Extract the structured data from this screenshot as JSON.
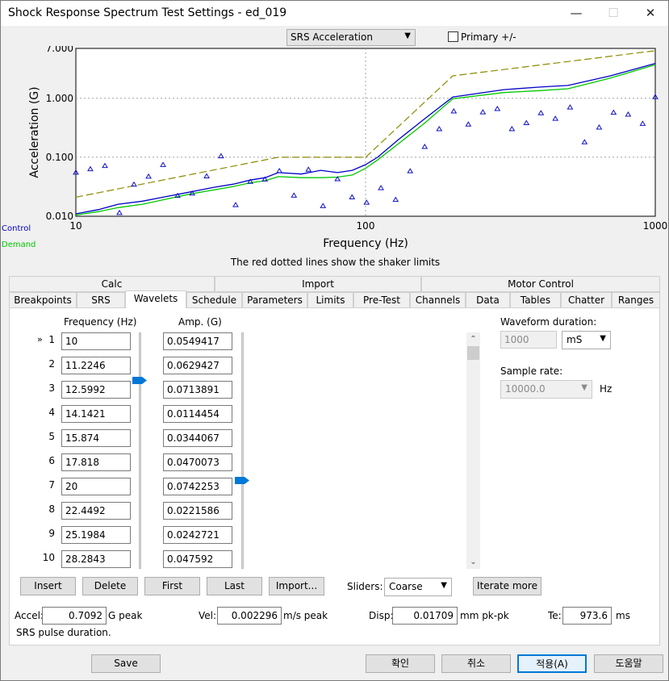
{
  "window": {
    "title": "Shock Response Spectrum Test Settings - ed_019"
  },
  "chart_select": {
    "value": "SRS Acceleration"
  },
  "primary_checkbox": {
    "label": "Primary +/-",
    "checked": false
  },
  "legend": {
    "control": "Control",
    "demand": "Demand"
  },
  "shaker_note": "The red dotted lines show the shaker limits",
  "chart_data": {
    "type": "line",
    "title": "",
    "xlabel": "Frequency (Hz)",
    "ylabel": "Acceleration (G)",
    "xscale": "log",
    "yscale": "log",
    "xlim": [
      10,
      1000
    ],
    "ylim": [
      0.01,
      7
    ],
    "xticks": [
      "10",
      "100",
      "1000"
    ],
    "yticks": [
      "0.010",
      "0.100",
      "1.000",
      "7.000"
    ],
    "grid": true,
    "colors": {
      "limit": "#8b8b00",
      "control": "#0000c8",
      "demand": "#00c800",
      "marker": "#1010c8"
    },
    "series": [
      {
        "role": "limit",
        "x": [
          10,
          50,
          100,
          200,
          1000
        ],
        "y": [
          0.021,
          0.1,
          0.1,
          2.4,
          6.4
        ]
      },
      {
        "role": "control",
        "x": [
          10,
          12,
          14,
          17,
          20,
          25,
          30,
          35,
          40,
          45,
          50,
          60,
          70,
          80,
          90,
          100,
          110,
          130,
          160,
          200,
          300,
          400,
          500,
          700,
          1000
        ],
        "y": [
          0.011,
          0.013,
          0.016,
          0.018,
          0.021,
          0.026,
          0.031,
          0.035,
          0.041,
          0.045,
          0.055,
          0.052,
          0.06,
          0.055,
          0.06,
          0.075,
          0.1,
          0.2,
          0.45,
          1.05,
          1.4,
          1.55,
          1.65,
          2.4,
          3.9
        ]
      },
      {
        "role": "demand",
        "x": [
          10,
          12,
          14,
          17,
          20,
          25,
          30,
          35,
          40,
          45,
          50,
          60,
          70,
          80,
          90,
          100,
          110,
          130,
          160,
          200,
          300,
          400,
          500,
          700,
          1000
        ],
        "y": [
          0.0105,
          0.012,
          0.014,
          0.016,
          0.019,
          0.024,
          0.028,
          0.032,
          0.037,
          0.04,
          0.047,
          0.045,
          0.045,
          0.046,
          0.05,
          0.065,
          0.09,
          0.17,
          0.38,
          0.98,
          1.25,
          1.35,
          1.45,
          2.2,
          3.7
        ]
      },
      {
        "role": "wavelets",
        "x": [
          10,
          11.22,
          12.6,
          14.14,
          15.87,
          17.82,
          20,
          22.45,
          25.2,
          28.28,
          31.7,
          35.6,
          40,
          44.9,
          50.4,
          56.6,
          63.5,
          71.3,
          80,
          89.8,
          100.8,
          113,
          127,
          142.5,
          160,
          179.6,
          201.6,
          226.3,
          254,
          285,
          320,
          359,
          403,
          452,
          508,
          570,
          640,
          718,
          806,
          905,
          1000
        ],
        "y": [
          0.0549,
          0.0629,
          0.0714,
          0.0114,
          0.0344,
          0.047,
          0.0742,
          0.0222,
          0.0243,
          0.0476,
          0.104,
          0.0155,
          0.0385,
          0.042,
          0.0584,
          0.0224,
          0.0617,
          0.0149,
          0.0425,
          0.021,
          0.017,
          0.03,
          0.019,
          0.058,
          0.15,
          0.3,
          0.6,
          0.36,
          0.58,
          0.66,
          0.3,
          0.38,
          0.56,
          0.45,
          0.7,
          0.18,
          0.32,
          0.57,
          0.53,
          0.37,
          1.05
        ]
      }
    ]
  },
  "tabs_row1": [
    "Calc",
    "Import",
    "Motor Control"
  ],
  "tabs_row2": [
    "Breakpoints",
    "SRS",
    "Wavelets",
    "Schedule",
    "Parameters",
    "Limits",
    "Pre-Test",
    "Channels",
    "Data",
    "Tables",
    "Chatter",
    "Ranges"
  ],
  "grid": {
    "freq_header": "Frequency (Hz)",
    "amp_header": "Amp. (G)",
    "current_marker": "»",
    "rows": [
      {
        "n": "1",
        "f": "10",
        "a": "0.0549417"
      },
      {
        "n": "2",
        "f": "11.2246",
        "a": "0.0629427"
      },
      {
        "n": "3",
        "f": "12.5992",
        "a": "0.0713891"
      },
      {
        "n": "4",
        "f": "14.1421",
        "a": "0.0114454"
      },
      {
        "n": "5",
        "f": "15.874",
        "a": "0.0344067"
      },
      {
        "n": "6",
        "f": "17.818",
        "a": "0.0470073"
      },
      {
        "n": "7",
        "f": "20",
        "a": "0.0742253"
      },
      {
        "n": "8",
        "f": "22.4492",
        "a": "0.0221586"
      },
      {
        "n": "9",
        "f": "25.1984",
        "a": "0.0242721"
      },
      {
        "n": "10",
        "f": "28.2843",
        "a": "0.047592"
      }
    ]
  },
  "waveform": {
    "label": "Waveform duration:",
    "value": "1000",
    "unit": "mS"
  },
  "sample_rate": {
    "label": "Sample rate:",
    "value": "10000.0",
    "unit": "Hz"
  },
  "buttons": {
    "insert": "Insert",
    "delete": "Delete",
    "first": "First",
    "last": "Last",
    "import": "Import...",
    "iterate": "Iterate more"
  },
  "sliders": {
    "label": "Sliders:",
    "value": "Coarse"
  },
  "stats": {
    "accel_label": "Accel:",
    "accel": "0.7092",
    "accel_unit": "G peak",
    "vel_label": "Vel:",
    "vel": "0.002296",
    "vel_unit": "m/s peak",
    "disp_label": "Disp:",
    "disp": "0.01709",
    "disp_unit": "mm pk-pk",
    "te_label": "Te:",
    "te": "973.6",
    "te_unit": "ms"
  },
  "srs_note": "SRS pulse duration.",
  "footer": {
    "save": "Save",
    "ok": "확인",
    "cancel": "취소",
    "apply": "적용(A)",
    "help": "도움말"
  }
}
